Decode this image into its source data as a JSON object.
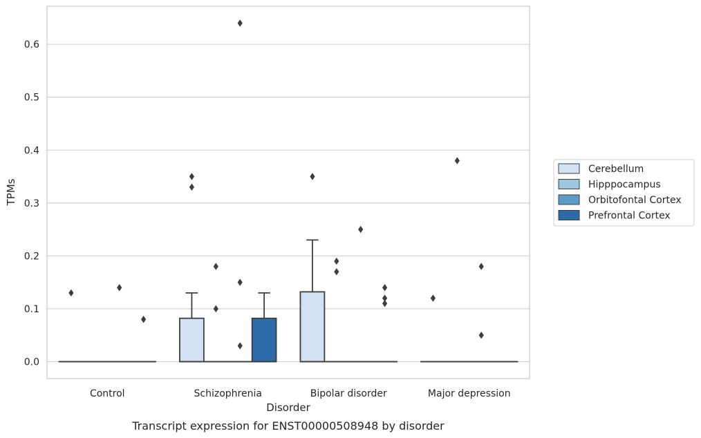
{
  "chart_data": {
    "type": "box",
    "caption": "Transcript expression for ENST00000508948 by disorder",
    "xlabel": "Disorder",
    "ylabel": "TPMs",
    "ylim": [
      -0.032,
      0.672
    ],
    "yticks": [
      0.0,
      0.1,
      0.2,
      0.3,
      0.4,
      0.5,
      0.6
    ],
    "ytick_labels": [
      "0.0",
      "0.1",
      "0.2",
      "0.3",
      "0.4",
      "0.5",
      "0.6"
    ],
    "grid": "horizontal",
    "legend_position": "right",
    "categories": [
      "Control",
      "Schizophrenia",
      "Bipolar disorder",
      "Major depression"
    ],
    "series": [
      {
        "name": "Cerebellum",
        "color": "#d3e2f3",
        "boxes": [
          {
            "q1": 0,
            "median": 0,
            "q3": 0,
            "whisker_low": 0,
            "whisker_high": 0,
            "outliers": [
              0.13
            ]
          },
          {
            "q1": 0,
            "median": 0,
            "q3": 0.082,
            "whisker_low": 0,
            "whisker_high": 0.13,
            "outliers": [
              0.35,
              0.33
            ]
          },
          {
            "q1": 0,
            "median": 0,
            "q3": 0.132,
            "whisker_low": 0,
            "whisker_high": 0.23,
            "outliers": [
              0.35
            ]
          },
          {
            "q1": 0,
            "median": 0,
            "q3": 0,
            "whisker_low": 0,
            "whisker_high": 0,
            "outliers": [
              0.12
            ]
          }
        ]
      },
      {
        "name": "Hipppocampus",
        "color": "#9dc6e0",
        "boxes": [
          {
            "q1": 0,
            "median": 0,
            "q3": 0,
            "whisker_low": 0,
            "whisker_high": 0,
            "outliers": []
          },
          {
            "q1": 0,
            "median": 0,
            "q3": 0,
            "whisker_low": 0,
            "whisker_high": 0,
            "outliers": [
              0.18,
              0.1
            ]
          },
          {
            "q1": 0,
            "median": 0,
            "q3": 0,
            "whisker_low": 0,
            "whisker_high": 0,
            "outliers": [
              0.19,
              0.17
            ]
          },
          {
            "q1": 0,
            "median": 0,
            "q3": 0,
            "whisker_low": 0,
            "whisker_high": 0,
            "outliers": [
              0.38
            ]
          }
        ]
      },
      {
        "name": "Orbitofontal Cortex",
        "color": "#5a9bc8",
        "boxes": [
          {
            "q1": 0,
            "median": 0,
            "q3": 0,
            "whisker_low": 0,
            "whisker_high": 0,
            "outliers": [
              0.14
            ]
          },
          {
            "q1": 0,
            "median": 0,
            "q3": 0,
            "whisker_low": 0,
            "whisker_high": 0,
            "outliers": [
              0.64,
              0.15,
              0.03
            ]
          },
          {
            "q1": 0,
            "median": 0,
            "q3": 0,
            "whisker_low": 0,
            "whisker_high": 0,
            "outliers": [
              0.25
            ]
          },
          {
            "q1": 0,
            "median": 0,
            "q3": 0,
            "whisker_low": 0,
            "whisker_high": 0,
            "outliers": [
              0.18,
              0.05
            ]
          }
        ]
      },
      {
        "name": "Prefrontal Cortex",
        "color": "#2d6aa8",
        "boxes": [
          {
            "q1": 0,
            "median": 0,
            "q3": 0,
            "whisker_low": 0,
            "whisker_high": 0,
            "outliers": [
              0.08
            ]
          },
          {
            "q1": 0,
            "median": 0,
            "q3": 0.082,
            "whisker_low": 0,
            "whisker_high": 0.13,
            "outliers": []
          },
          {
            "q1": 0,
            "median": 0,
            "q3": 0,
            "whisker_low": 0,
            "whisker_high": 0,
            "outliers": [
              0.14,
              0.12,
              0.11
            ]
          },
          {
            "q1": 0,
            "median": 0,
            "q3": 0,
            "whisker_low": 0,
            "whisker_high": 0,
            "outliers": []
          }
        ]
      }
    ]
  }
}
